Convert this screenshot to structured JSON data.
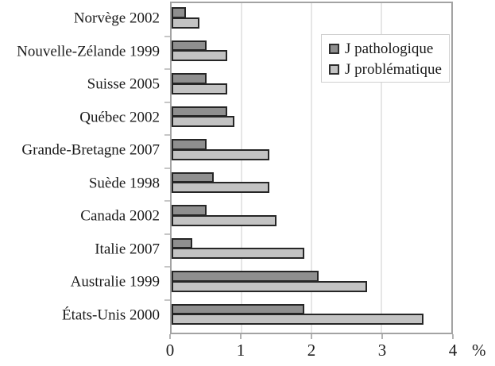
{
  "chart_data": {
    "type": "bar",
    "orientation": "horizontal",
    "title": "",
    "categories": [
      "Norvège 2002",
      "Nouvelle-Zélande 1999",
      "Suisse 2005",
      "Québec 2002",
      "Grande-Bretagne 2007",
      "Suède 1998",
      "Canada 2002",
      "Italie 2007",
      "Australie 1999",
      "États-Unis 2000"
    ],
    "series": [
      {
        "name": "J pathologique",
        "color": "#8f8f8f",
        "values": [
          0.2,
          0.5,
          0.5,
          0.8,
          0.5,
          0.6,
          0.5,
          0.3,
          2.1,
          1.9
        ]
      },
      {
        "name": "J problématique",
        "color": "#c3c3c3",
        "values": [
          0.4,
          0.8,
          0.8,
          0.9,
          1.4,
          1.4,
          1.5,
          1.9,
          2.8,
          3.6
        ]
      }
    ],
    "xlabel": "%",
    "ylabel": "",
    "x_tick_labels": [
      "0",
      "1",
      "2",
      "3",
      "4"
    ],
    "x_ticks": [
      0,
      1,
      2,
      3,
      4
    ],
    "xlim": [
      0,
      4
    ],
    "grid": "vertical-gridlines-on",
    "legend_position": "top-right",
    "colors": {
      "bar_border": "#262626",
      "plot_frame": "#a3a3a3",
      "gridline": "#e6e6e6",
      "text": "#1c1c1c",
      "background": "#ffffff"
    }
  }
}
